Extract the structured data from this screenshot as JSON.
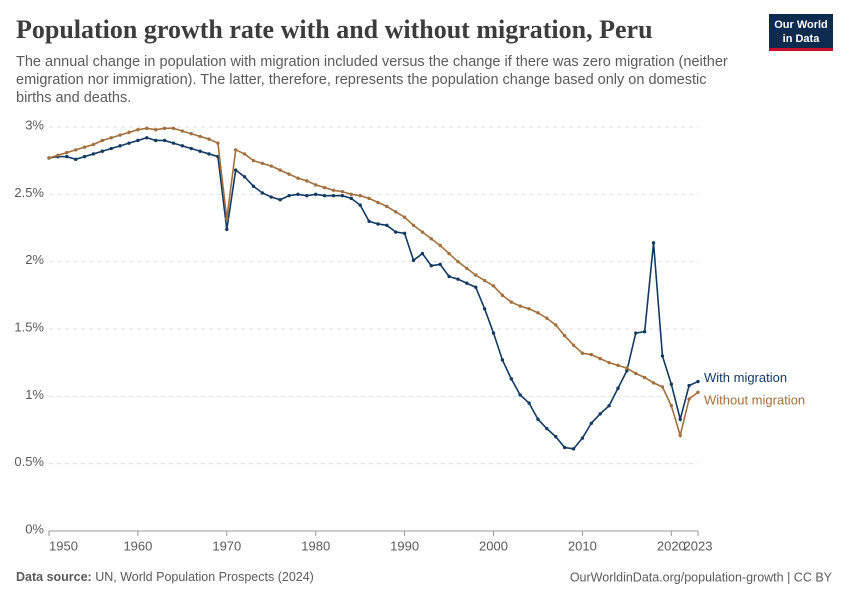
{
  "header": {
    "title": "Population growth rate with and without migration, Peru",
    "subtitle": [
      "The annual change in population with migration included versus the change if there was zero migration (neither",
      "emigration nor immigration). The latter, therefore, represents the population change based only on domestic",
      "births and deaths."
    ],
    "logo": [
      "Our World",
      "in Data"
    ]
  },
  "chart_data": {
    "type": "line",
    "x": [
      1950,
      1951,
      1952,
      1953,
      1954,
      1955,
      1956,
      1957,
      1958,
      1959,
      1960,
      1961,
      1962,
      1963,
      1964,
      1965,
      1966,
      1967,
      1968,
      1969,
      1970,
      1971,
      1972,
      1973,
      1974,
      1975,
      1976,
      1977,
      1978,
      1979,
      1980,
      1981,
      1982,
      1983,
      1984,
      1985,
      1986,
      1987,
      1988,
      1989,
      1990,
      1991,
      1992,
      1993,
      1994,
      1995,
      1996,
      1997,
      1998,
      1999,
      2000,
      2001,
      2002,
      2003,
      2004,
      2005,
      2006,
      2007,
      2008,
      2009,
      2010,
      2011,
      2012,
      2013,
      2014,
      2015,
      2016,
      2017,
      2018,
      2019,
      2020,
      2021,
      2022,
      2023
    ],
    "series": [
      {
        "name": "With migration",
        "color": "#133a63",
        "values": [
          2.77,
          2.78,
          2.78,
          2.76,
          2.78,
          2.8,
          2.82,
          2.84,
          2.86,
          2.88,
          2.9,
          2.92,
          2.9,
          2.9,
          2.88,
          2.86,
          2.84,
          2.82,
          2.8,
          2.78,
          2.24,
          2.68,
          2.63,
          2.56,
          2.51,
          2.48,
          2.46,
          2.49,
          2.5,
          2.49,
          2.5,
          2.49,
          2.49,
          2.49,
          2.47,
          2.42,
          2.3,
          2.28,
          2.27,
          2.22,
          2.21,
          2.01,
          2.06,
          1.97,
          1.98,
          1.89,
          1.87,
          1.84,
          1.81,
          1.65,
          1.47,
          1.27,
          1.13,
          1.01,
          0.95,
          0.83,
          0.76,
          0.7,
          0.62,
          0.61,
          0.69,
          0.8,
          0.87,
          0.93,
          1.06,
          1.19,
          1.47,
          1.48,
          2.14,
          1.3,
          1.09,
          0.83,
          1.08,
          1.11
        ]
      },
      {
        "name": "Without migration",
        "color": "#a2703c",
        "values": [
          2.77,
          2.79,
          2.81,
          2.83,
          2.85,
          2.87,
          2.9,
          2.92,
          2.94,
          2.96,
          2.98,
          2.99,
          2.98,
          2.99,
          2.99,
          2.97,
          2.95,
          2.93,
          2.91,
          2.88,
          2.32,
          2.83,
          2.8,
          2.75,
          2.73,
          2.71,
          2.68,
          2.65,
          2.62,
          2.6,
          2.57,
          2.55,
          2.53,
          2.52,
          2.5,
          2.49,
          2.47,
          2.44,
          2.41,
          2.37,
          2.33,
          2.27,
          2.22,
          2.17,
          2.12,
          2.06,
          2.0,
          1.95,
          1.9,
          1.86,
          1.82,
          1.75,
          1.7,
          1.67,
          1.65,
          1.62,
          1.58,
          1.53,
          1.45,
          1.38,
          1.32,
          1.31,
          1.28,
          1.25,
          1.23,
          1.21,
          1.17,
          1.14,
          1.1,
          1.07,
          0.93,
          0.71,
          0.98,
          1.03
        ]
      }
    ],
    "xlim": [
      1950,
      2023
    ],
    "xticks": [
      1950,
      1960,
      1970,
      1980,
      1990,
      2000,
      2010,
      2020,
      2023
    ],
    "ylim": [
      0,
      3
    ],
    "yticks": [
      {
        "value": 0,
        "label": "0%"
      },
      {
        "value": 0.5,
        "label": "0.5%"
      },
      {
        "value": 1,
        "label": "1%"
      },
      {
        "value": 1.5,
        "label": "1.5%"
      },
      {
        "value": 2,
        "label": "2%"
      },
      {
        "value": 2.5,
        "label": "2.5%"
      },
      {
        "value": 3,
        "label": "3%"
      }
    ],
    "grid": true
  },
  "footer": {
    "source_label": "Data source:",
    "source": "UN, World Population Prospects (2024)",
    "url": "OurWorldinData.org/population-growth | CC BY"
  }
}
